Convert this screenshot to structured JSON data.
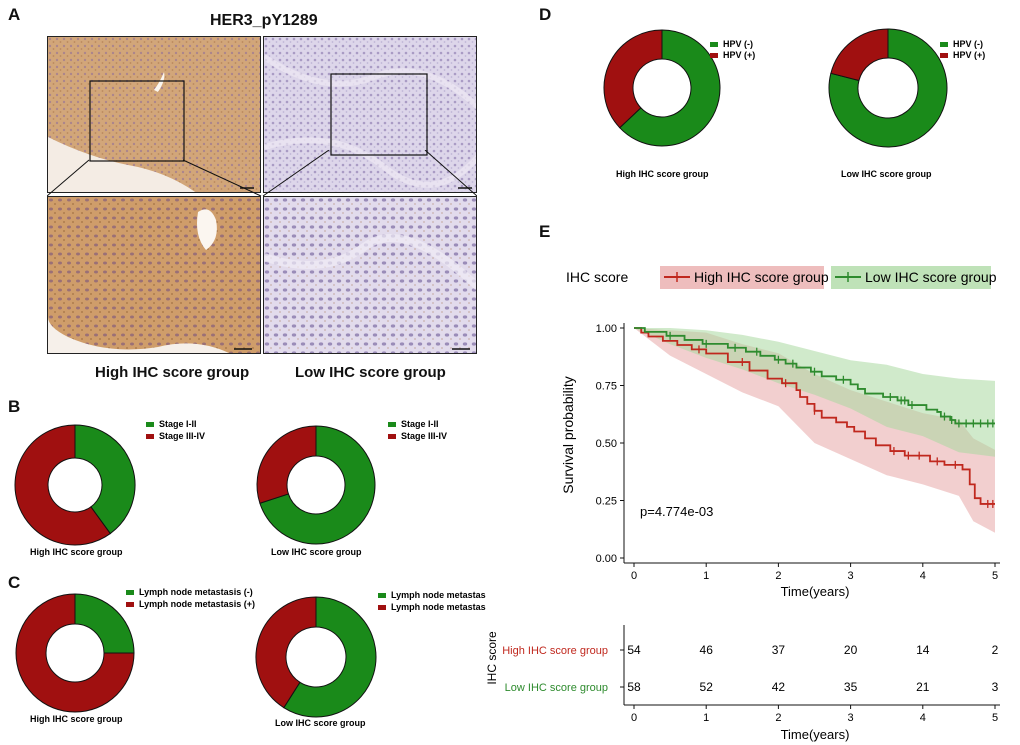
{
  "panels": {
    "A": "A",
    "B": "B",
    "C": "C",
    "D": "D",
    "E": "E"
  },
  "panel_a": {
    "title": "HER3_pY1289",
    "left_label": "High IHC score group",
    "right_label": "Low IHC score group",
    "colors": {
      "high_stain": "#c99a6a",
      "low_stain": "#b5a6cc"
    }
  },
  "colors": {
    "green": "#1a8a1a",
    "red": "#a01010",
    "high": "#c0281e",
    "low": "#2e8b2e",
    "high_fill": "#e8a7a7",
    "low_fill": "#a9d8a0"
  },
  "donut_labels": {
    "stage_1_2": "Stage I-II",
    "stage_3_4": "Stage III-IV",
    "lymph_neg": "Lymph node metastasis (-)",
    "lymph_pos": "Lymph node metastasis (+)",
    "lymph_neg_trunc": "Lymph node metastas",
    "lymph_pos_trunc": "Lymph node metastas",
    "hpv_neg": "HPV (-)",
    "hpv_pos": "HPV (+)",
    "high_group": "High IHC score group",
    "low_group": "Low IHC score group"
  },
  "chart_data": [
    {
      "id": "B-high",
      "type": "pie",
      "title": "High IHC score group",
      "categories": [
        "Stage I-II",
        "Stage III-IV"
      ],
      "values": [
        0.4,
        0.6
      ]
    },
    {
      "id": "B-low",
      "type": "pie",
      "title": "Low IHC score group",
      "categories": [
        "Stage I-II",
        "Stage III-IV"
      ],
      "values": [
        0.7,
        0.3
      ]
    },
    {
      "id": "C-high",
      "type": "pie",
      "title": "High IHC score group",
      "categories": [
        "Lymph node metastasis (-)",
        "Lymph node metastasis (+)"
      ],
      "values": [
        0.25,
        0.75
      ]
    },
    {
      "id": "C-low",
      "type": "pie",
      "title": "Low IHC score group",
      "categories": [
        "Lymph node metastasis (-)",
        "Lymph node metastasis (+)"
      ],
      "values": [
        0.59,
        0.41
      ]
    },
    {
      "id": "D-high",
      "type": "pie",
      "title": "High IHC score group",
      "categories": [
        "HPV (-)",
        "HPV (+)"
      ],
      "values": [
        0.63,
        0.37
      ]
    },
    {
      "id": "D-low",
      "type": "pie",
      "title": "Low IHC score group",
      "categories": [
        "HPV (-)",
        "HPV (+)"
      ],
      "values": [
        0.79,
        0.21
      ]
    },
    {
      "id": "E",
      "type": "line",
      "legend_title": "IHC score",
      "xlabel": "Time(years)",
      "ylabel": "Survival probability",
      "xlim": [
        0,
        5
      ],
      "ylim": [
        0,
        1
      ],
      "xticks": [
        "0",
        "1",
        "2",
        "3",
        "4",
        "5"
      ],
      "yticks": [
        "0.00",
        "0.25",
        "0.50",
        "0.75",
        "1.00"
      ],
      "pvalue": "p=4.774e-03",
      "series": [
        {
          "name": "High IHC score group",
          "steps": [
            [
              0,
              1.0
            ],
            [
              0.1,
              0.98
            ],
            [
              0.2,
              0.963
            ],
            [
              0.4,
              0.944
            ],
            [
              0.6,
              0.926
            ],
            [
              0.8,
              0.907
            ],
            [
              1.0,
              0.889
            ],
            [
              1.3,
              0.852
            ],
            [
              1.6,
              0.815
            ],
            [
              1.85,
              0.78
            ],
            [
              2.05,
              0.76
            ],
            [
              2.25,
              0.73
            ],
            [
              2.3,
              0.7
            ],
            [
              2.4,
              0.67
            ],
            [
              2.5,
              0.64
            ],
            [
              2.6,
              0.61
            ],
            [
              2.8,
              0.59
            ],
            [
              2.95,
              0.57
            ],
            [
              3.05,
              0.55
            ],
            [
              3.2,
              0.52
            ],
            [
              3.35,
              0.49
            ],
            [
              3.55,
              0.465
            ],
            [
              3.75,
              0.445
            ],
            [
              4.1,
              0.42
            ],
            [
              4.3,
              0.405
            ],
            [
              4.55,
              0.385
            ],
            [
              4.65,
              0.32
            ],
            [
              4.72,
              0.26
            ],
            [
              4.8,
              0.235
            ],
            [
              5.0,
              0.235
            ]
          ],
          "upper": [
            [
              0,
              1.0
            ],
            [
              0.5,
              0.99
            ],
            [
              1.0,
              0.98
            ],
            [
              1.5,
              0.93
            ],
            [
              2.0,
              0.89
            ],
            [
              2.5,
              0.8
            ],
            [
              3.0,
              0.73
            ],
            [
              3.5,
              0.68
            ],
            [
              4.0,
              0.63
            ],
            [
              4.5,
              0.6
            ],
            [
              4.7,
              0.52
            ],
            [
              5.0,
              0.47
            ]
          ],
          "lower": [
            [
              0,
              1.0
            ],
            [
              0.5,
              0.88
            ],
            [
              1.0,
              0.8
            ],
            [
              1.5,
              0.72
            ],
            [
              2.0,
              0.66
            ],
            [
              2.5,
              0.5
            ],
            [
              3.0,
              0.43
            ],
            [
              3.5,
              0.36
            ],
            [
              4.0,
              0.32
            ],
            [
              4.5,
              0.27
            ],
            [
              4.7,
              0.16
            ],
            [
              5.0,
              0.11
            ]
          ],
          "censors": [
            [
              0.9,
              0.907
            ],
            [
              1.5,
              0.852
            ],
            [
              2.1,
              0.76
            ],
            [
              2.5,
              0.64
            ],
            [
              3.6,
              0.465
            ],
            [
              3.8,
              0.445
            ],
            [
              3.95,
              0.445
            ],
            [
              4.2,
              0.42
            ],
            [
              4.45,
              0.405
            ],
            [
              4.9,
              0.235
            ],
            [
              4.97,
              0.235
            ]
          ]
        },
        {
          "name": "Low IHC score group",
          "steps": [
            [
              0,
              1.0
            ],
            [
              0.15,
              0.983
            ],
            [
              0.45,
              0.966
            ],
            [
              0.7,
              0.948
            ],
            [
              0.95,
              0.931
            ],
            [
              1.3,
              0.914
            ],
            [
              1.55,
              0.897
            ],
            [
              1.75,
              0.879
            ],
            [
              1.95,
              0.862
            ],
            [
              2.1,
              0.845
            ],
            [
              2.25,
              0.828
            ],
            [
              2.45,
              0.81
            ],
            [
              2.6,
              0.79
            ],
            [
              2.8,
              0.775
            ],
            [
              3.0,
              0.755
            ],
            [
              3.1,
              0.735
            ],
            [
              3.2,
              0.715
            ],
            [
              3.45,
              0.7
            ],
            [
              3.65,
              0.685
            ],
            [
              3.8,
              0.665
            ],
            [
              4.05,
              0.645
            ],
            [
              4.2,
              0.635
            ],
            [
              4.25,
              0.615
            ],
            [
              4.38,
              0.6
            ],
            [
              4.45,
              0.585
            ],
            [
              5.0,
              0.585
            ]
          ],
          "upper": [
            [
              0,
              1.0
            ],
            [
              0.5,
              1.0
            ],
            [
              1.0,
              0.99
            ],
            [
              1.5,
              0.97
            ],
            [
              2.0,
              0.94
            ],
            [
              2.5,
              0.9
            ],
            [
              3.0,
              0.86
            ],
            [
              3.5,
              0.84
            ],
            [
              4.0,
              0.8
            ],
            [
              4.5,
              0.78
            ],
            [
              5.0,
              0.77
            ]
          ],
          "lower": [
            [
              0,
              1.0
            ],
            [
              0.5,
              0.93
            ],
            [
              1.0,
              0.87
            ],
            [
              1.5,
              0.82
            ],
            [
              2.0,
              0.76
            ],
            [
              2.5,
              0.71
            ],
            [
              3.0,
              0.65
            ],
            [
              3.5,
              0.57
            ],
            [
              4.0,
              0.53
            ],
            [
              4.5,
              0.46
            ],
            [
              5.0,
              0.44
            ]
          ],
          "censors": [
            [
              0.5,
              0.966
            ],
            [
              1.0,
              0.931
            ],
            [
              1.4,
              0.914
            ],
            [
              1.7,
              0.897
            ],
            [
              2.0,
              0.862
            ],
            [
              2.2,
              0.845
            ],
            [
              2.5,
              0.81
            ],
            [
              2.9,
              0.775
            ],
            [
              3.55,
              0.7
            ],
            [
              3.7,
              0.685
            ],
            [
              3.75,
              0.685
            ],
            [
              3.85,
              0.665
            ],
            [
              4.3,
              0.615
            ],
            [
              4.4,
              0.6
            ],
            [
              4.5,
              0.585
            ],
            [
              4.6,
              0.585
            ],
            [
              4.7,
              0.585
            ],
            [
              4.8,
              0.585
            ],
            [
              4.9,
              0.585
            ],
            [
              4.97,
              0.585
            ]
          ]
        }
      ],
      "risk_table": {
        "title": "IHC score",
        "xlabel": "Time(years)",
        "rows": [
          {
            "name": "High IHC score group",
            "values": [
              "54",
              "46",
              "37",
              "20",
              "14",
              "2"
            ]
          },
          {
            "name": "Low IHC score group",
            "values": [
              "58",
              "52",
              "42",
              "35",
              "21",
              "3"
            ]
          }
        ]
      }
    }
  ]
}
